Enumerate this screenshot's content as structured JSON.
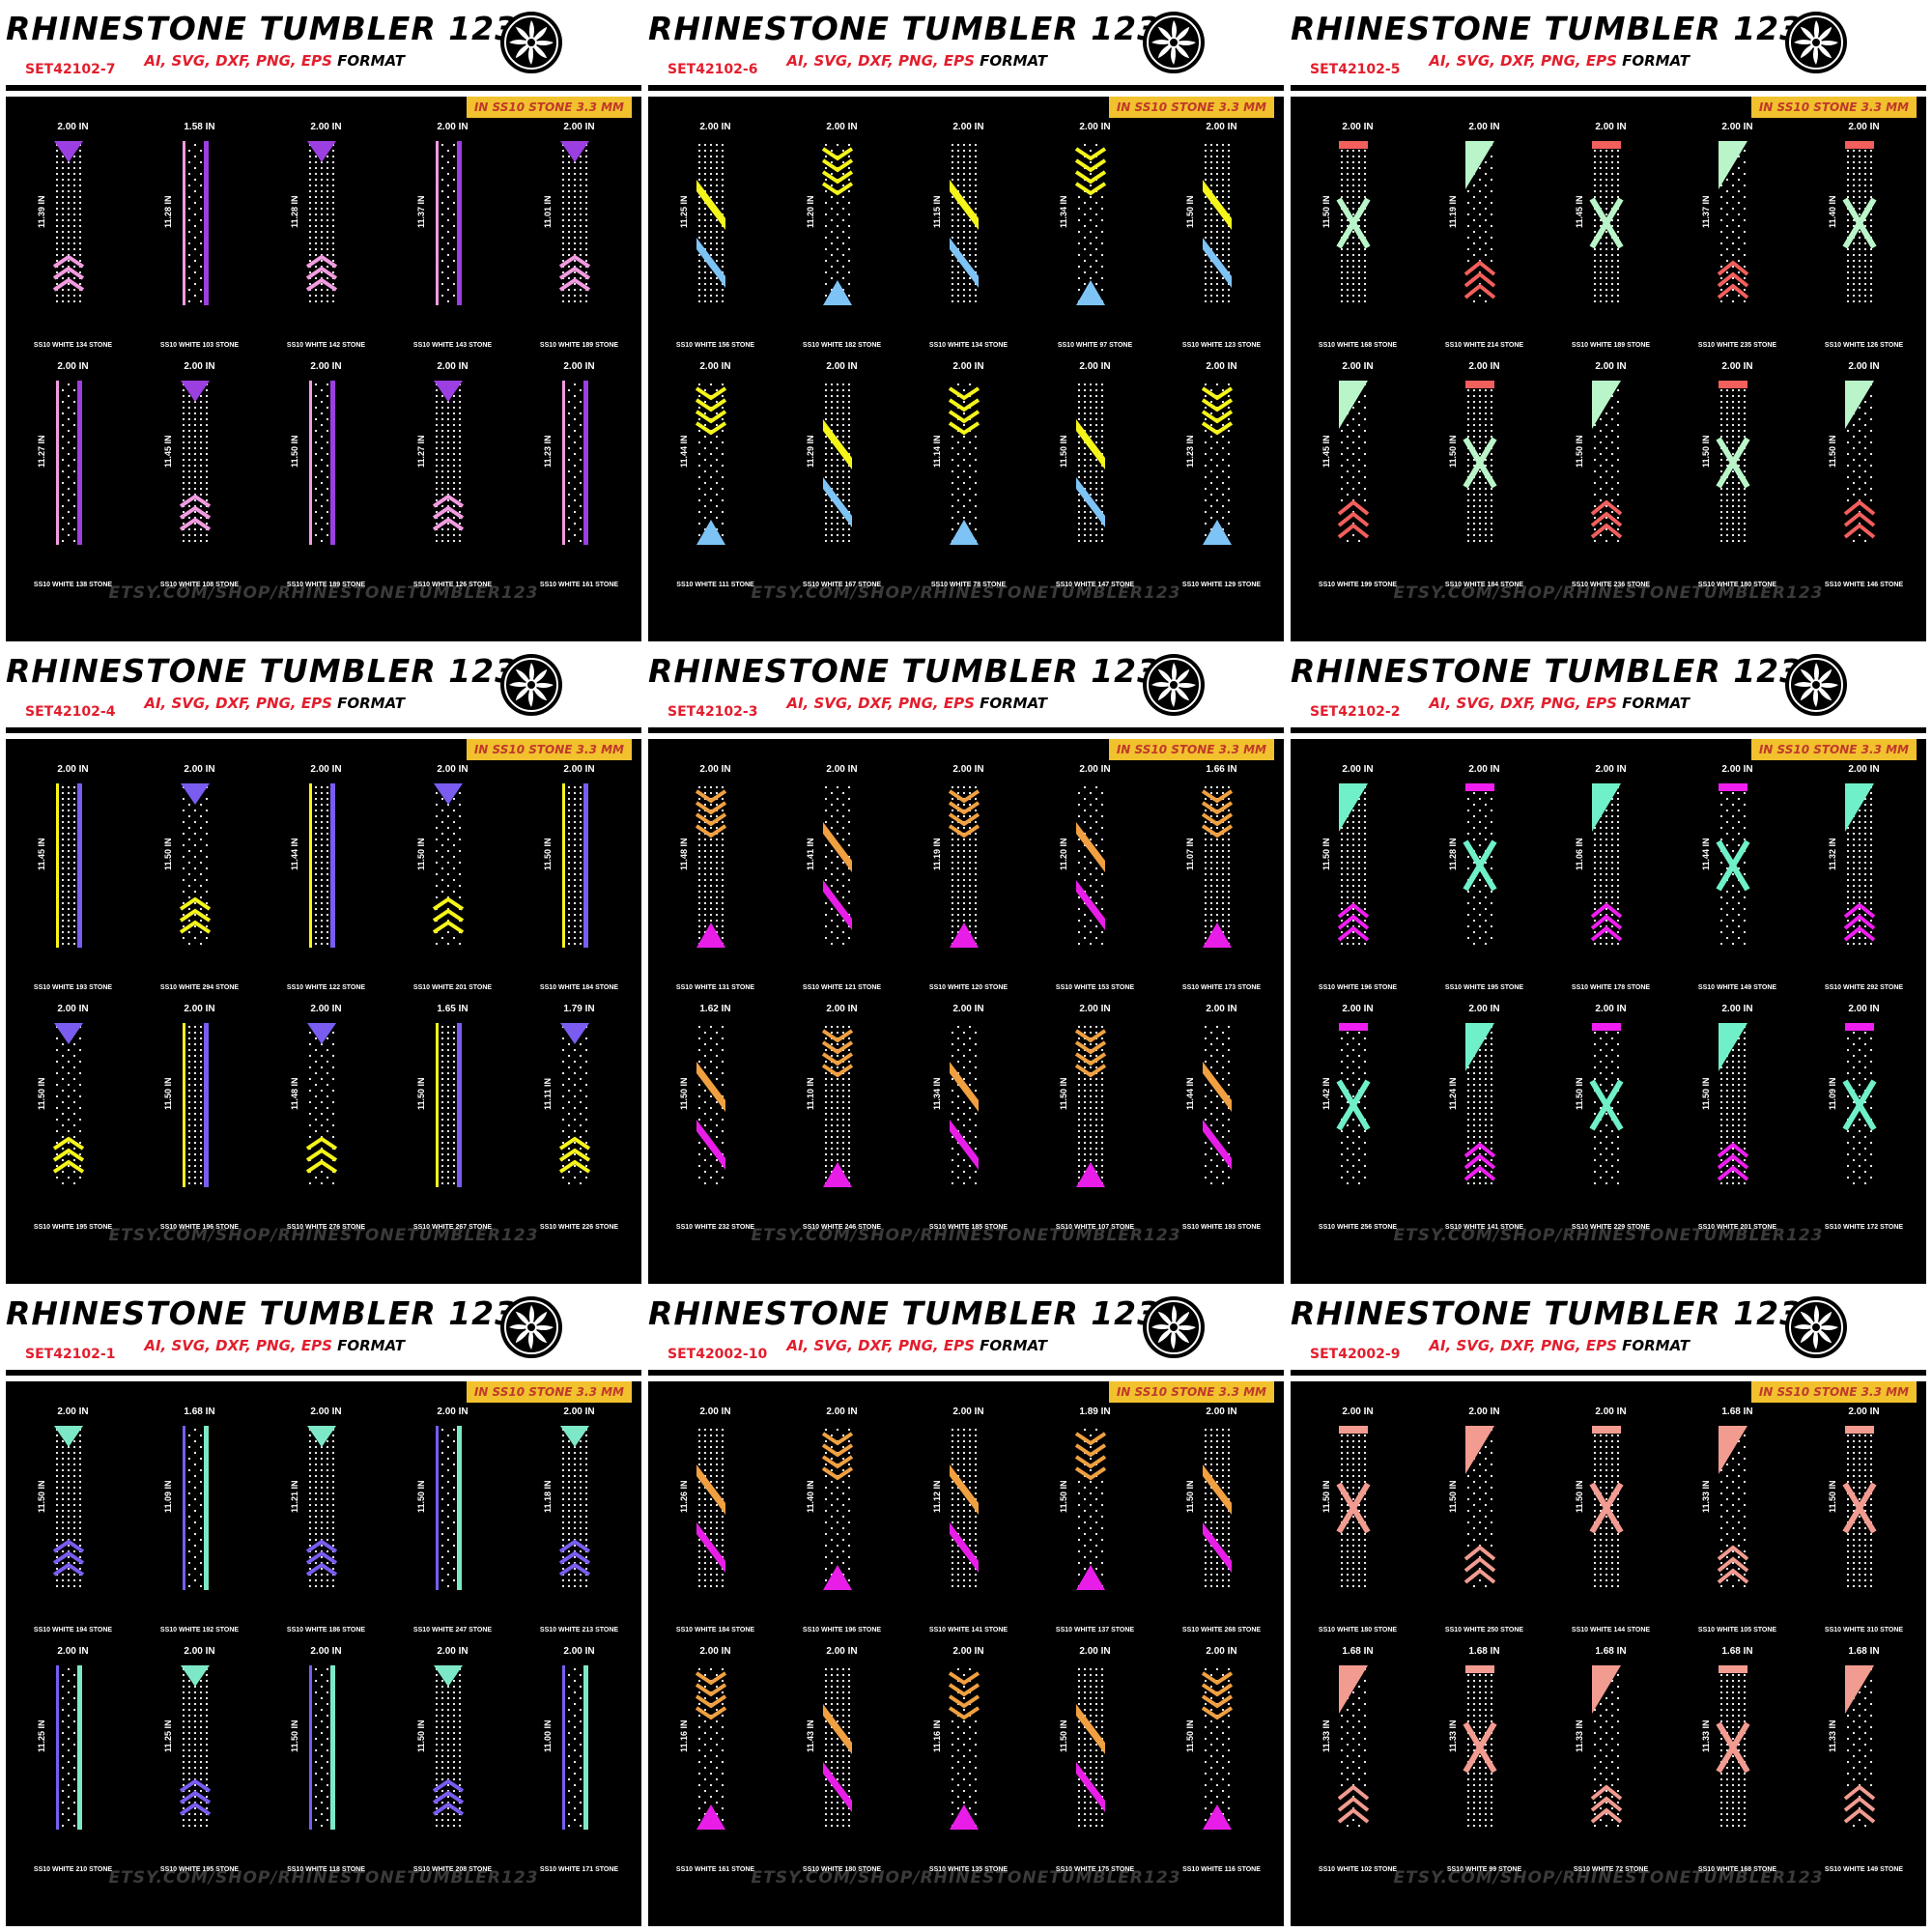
{
  "brand": "RHINESTONE TUMBLER 123",
  "format_colored": "AI, SVG, DXF, PNG, EPS",
  "format_suffix": "FORMAT",
  "badge": "IN SS10 STONE 3.3 MM",
  "footer": "ETSY.COM/SHOP/RHINESTONETUMBLER123",
  "logo_icon": "rosette-logo-icon",
  "colors": {
    "header_red": "#e21e2d",
    "badge_yellow": "#f2c12e",
    "panel_bg": "#000000"
  },
  "panels": [
    {
      "code": "SET42102-7",
      "accent": "#9b3fe0",
      "accent2": "#f29be0",
      "designs": [
        {
          "w": "2.00 IN",
          "h": "11.39 IN",
          "s": "SS10 WHITE 134 STONE"
        },
        {
          "w": "1.58 IN",
          "h": "11.28 IN",
          "s": "SS10 WHITE 103 STONE"
        },
        {
          "w": "2.00 IN",
          "h": "11.28 IN",
          "s": "SS10 WHITE 142 STONE"
        },
        {
          "w": "2.00 IN",
          "h": "11.37 IN",
          "s": "SS10 WHITE 143 STONE"
        },
        {
          "w": "2.00 IN",
          "h": "11.01 IN",
          "s": "SS10 WHITE 189 STONE"
        },
        {
          "w": "2.00 IN",
          "h": "11.27 IN",
          "s": "SS10 WHITE 138 STONE"
        },
        {
          "w": "2.00 IN",
          "h": "11.45 IN",
          "s": "SS10 WHITE 108 STONE"
        },
        {
          "w": "2.00 IN",
          "h": "11.50 IN",
          "s": "SS10 WHITE 189 STONE"
        },
        {
          "w": "2.00 IN",
          "h": "11.27 IN",
          "s": "SS10 WHITE 126 STONE"
        },
        {
          "w": "2.00 IN",
          "h": "11.23 IN",
          "s": "SS10 WHITE 161 STONE"
        }
      ]
    },
    {
      "code": "SET42102-6",
      "accent": "#f5f51a",
      "accent2": "#7ec3f5",
      "designs": [
        {
          "w": "2.00 IN",
          "h": "11.25 IN",
          "s": "SS10 WHITE 156 STONE"
        },
        {
          "w": "2.00 IN",
          "h": "11.20 IN",
          "s": "SS10 WHITE 182 STONE"
        },
        {
          "w": "2.00 IN",
          "h": "11.15 IN",
          "s": "SS10 WHITE 134 STONE"
        },
        {
          "w": "2.00 IN",
          "h": "11.34 IN",
          "s": "SS10 WHITE 97 STONE"
        },
        {
          "w": "2.00 IN",
          "h": "11.50 IN",
          "s": "SS10 WHITE 123 STONE"
        },
        {
          "w": "2.00 IN",
          "h": "11.44 IN",
          "s": "SS10 WHITE 111 STONE"
        },
        {
          "w": "2.00 IN",
          "h": "11.29 IN",
          "s": "SS10 WHITE 167 STONE"
        },
        {
          "w": "2.00 IN",
          "h": "11.14 IN",
          "s": "SS10 WHITE 78 STONE"
        },
        {
          "w": "2.00 IN",
          "h": "11.50 IN",
          "s": "SS10 WHITE 147 STONE"
        },
        {
          "w": "2.00 IN",
          "h": "11.23 IN",
          "s": "SS10 WHITE 129 STONE"
        }
      ]
    },
    {
      "code": "SET42102-5",
      "accent": "#b9f5c9",
      "accent2": "#f25f5c",
      "designs": [
        {
          "w": "2.00 IN",
          "h": "11.50 IN",
          "s": "SS10 WHITE 168 STONE"
        },
        {
          "w": "2.00 IN",
          "h": "11.19 IN",
          "s": "SS10 WHITE 214 STONE"
        },
        {
          "w": "2.00 IN",
          "h": "11.45 IN",
          "s": "SS10 WHITE 189 STONE"
        },
        {
          "w": "2.00 IN",
          "h": "11.37 IN",
          "s": "SS10 WHITE 235 STONE"
        },
        {
          "w": "2.00 IN",
          "h": "11.40 IN",
          "s": "SS10 WHITE 126 STONE"
        },
        {
          "w": "2.00 IN",
          "h": "11.45 IN",
          "s": "SS10 WHITE 199 STONE"
        },
        {
          "w": "2.00 IN",
          "h": "11.50 IN",
          "s": "SS10 WHITE 184 STONE"
        },
        {
          "w": "2.00 IN",
          "h": "11.50 IN",
          "s": "SS10 WHITE 236 STONE"
        },
        {
          "w": "2.00 IN",
          "h": "11.50 IN",
          "s": "SS10 WHITE 180 STONE"
        },
        {
          "w": "2.00 IN",
          "h": "11.50 IN",
          "s": "SS10 WHITE 146 STONE"
        }
      ]
    },
    {
      "code": "SET42102-4",
      "accent": "#7a5cf0",
      "accent2": "#f5f51a",
      "designs": [
        {
          "w": "2.00 IN",
          "h": "11.45 IN",
          "s": "SS10 WHITE 193 STONE"
        },
        {
          "w": "2.00 IN",
          "h": "11.50 IN",
          "s": "SS10 WHITE 294 STONE"
        },
        {
          "w": "2.00 IN",
          "h": "11.44 IN",
          "s": "SS10 WHITE 122 STONE"
        },
        {
          "w": "2.00 IN",
          "h": "11.50 IN",
          "s": "SS10 WHITE 201 STONE"
        },
        {
          "w": "2.00 IN",
          "h": "11.50 IN",
          "s": "SS10 WHITE 184 STONE"
        },
        {
          "w": "2.00 IN",
          "h": "11.50 IN",
          "s": "SS10 WHITE 195 STONE"
        },
        {
          "w": "2.00 IN",
          "h": "11.50 IN",
          "s": "SS10 WHITE 196 STONE"
        },
        {
          "w": "2.00 IN",
          "h": "11.48 IN",
          "s": "SS10 WHITE 276 STONE"
        },
        {
          "w": "1.65 IN",
          "h": "11.50 IN",
          "s": "SS10 WHITE 267 STONE"
        },
        {
          "w": "1.79 IN",
          "h": "11.11 IN",
          "s": "SS10 WHITE 226 STONE"
        }
      ]
    },
    {
      "code": "SET42102-3",
      "accent": "#f0a040",
      "accent2": "#e81ee8",
      "designs": [
        {
          "w": "2.00 IN",
          "h": "11.48 IN",
          "s": "SS10 WHITE 131 STONE"
        },
        {
          "w": "2.00 IN",
          "h": "11.41 IN",
          "s": "SS10 WHITE 121 STONE"
        },
        {
          "w": "2.00 IN",
          "h": "11.19 IN",
          "s": "SS10 WHITE 120 STONE"
        },
        {
          "w": "2.00 IN",
          "h": "11.20 IN",
          "s": "SS10 WHITE 153 STONE"
        },
        {
          "w": "1.66 IN",
          "h": "11.07 IN",
          "s": "SS10 WHITE 173 STONE"
        },
        {
          "w": "1.62 IN",
          "h": "11.50 IN",
          "s": "SS10 WHITE 232 STONE"
        },
        {
          "w": "2.00 IN",
          "h": "11.10 IN",
          "s": "SS10 WHITE 246 STONE"
        },
        {
          "w": "2.00 IN",
          "h": "11.34 IN",
          "s": "SS10 WHITE 185 STONE"
        },
        {
          "w": "2.00 IN",
          "h": "11.50 IN",
          "s": "SS10 WHITE 107 STONE"
        },
        {
          "w": "2.00 IN",
          "h": "11.44 IN",
          "s": "SS10 WHITE 193 STONE"
        }
      ]
    },
    {
      "code": "SET42102-2",
      "accent": "#6ff0c8",
      "accent2": "#f01ef0",
      "designs": [
        {
          "w": "2.00 IN",
          "h": "11.50 IN",
          "s": "SS10 WHITE 196 STONE"
        },
        {
          "w": "2.00 IN",
          "h": "11.28 IN",
          "s": "SS10 WHITE 195 STONE"
        },
        {
          "w": "2.00 IN",
          "h": "11.06 IN",
          "s": "SS10 WHITE 178 STONE"
        },
        {
          "w": "2.00 IN",
          "h": "11.44 IN",
          "s": "SS10 WHITE 149 STONE"
        },
        {
          "w": "2.00 IN",
          "h": "11.32 IN",
          "s": "SS10 WHITE 292 STONE"
        },
        {
          "w": "2.00 IN",
          "h": "11.42 IN",
          "s": "SS10 WHITE 256 STONE"
        },
        {
          "w": "2.00 IN",
          "h": "11.24 IN",
          "s": "SS10 WHITE 141 STONE"
        },
        {
          "w": "2.00 IN",
          "h": "11.50 IN",
          "s": "SS10 WHITE 229 STONE"
        },
        {
          "w": "2.00 IN",
          "h": "11.50 IN",
          "s": "SS10 WHITE 201 STONE"
        },
        {
          "w": "2.00 IN",
          "h": "11.09 IN",
          "s": "SS10 WHITE 172 STONE"
        }
      ]
    },
    {
      "code": "SET42102-1",
      "accent": "#7de8c8",
      "accent2": "#7a5cf0",
      "designs": [
        {
          "w": "2.00 IN",
          "h": "11.50 IN",
          "s": "SS10 WHITE 194 STONE"
        },
        {
          "w": "1.68 IN",
          "h": "11.09 IN",
          "s": "SS10 WHITE 192 STONE"
        },
        {
          "w": "2.00 IN",
          "h": "11.21 IN",
          "s": "SS10 WHITE 186 STONE"
        },
        {
          "w": "2.00 IN",
          "h": "11.50 IN",
          "s": "SS10 WHITE 247 STONE"
        },
        {
          "w": "2.00 IN",
          "h": "11.18 IN",
          "s": "SS10 WHITE 213 STONE"
        },
        {
          "w": "2.00 IN",
          "h": "11.25 IN",
          "s": "SS10 WHITE 210 STONE"
        },
        {
          "w": "2.00 IN",
          "h": "11.25 IN",
          "s": "SS10 WHITE 195 STONE"
        },
        {
          "w": "2.00 IN",
          "h": "11.50 IN",
          "s": "SS10 WHITE 118 STONE"
        },
        {
          "w": "2.00 IN",
          "h": "11.50 IN",
          "s": "SS10 WHITE 208 STONE"
        },
        {
          "w": "2.00 IN",
          "h": "11.00 IN",
          "s": "SS10 WHITE 171 STONE"
        }
      ]
    },
    {
      "code": "SET42002-10",
      "accent": "#f0a040",
      "accent2": "#e81ee8",
      "designs": [
        {
          "w": "2.00 IN",
          "h": "11.26 IN",
          "s": "SS10 WHITE 184 STONE"
        },
        {
          "w": "2.00 IN",
          "h": "11.40 IN",
          "s": "SS10 WHITE 196 STONE"
        },
        {
          "w": "2.00 IN",
          "h": "11.12 IN",
          "s": "SS10 WHITE 141 STONE"
        },
        {
          "w": "1.89 IN",
          "h": "11.50 IN",
          "s": "SS10 WHITE 137 STONE"
        },
        {
          "w": "2.00 IN",
          "h": "11.50 IN",
          "s": "SS10 WHITE 268 STONE"
        },
        {
          "w": "2.00 IN",
          "h": "11.16 IN",
          "s": "SS10 WHITE 161 STONE"
        },
        {
          "w": "2.00 IN",
          "h": "11.43 IN",
          "s": "SS10 WHITE 180 STONE"
        },
        {
          "w": "2.00 IN",
          "h": "11.16 IN",
          "s": "SS10 WHITE 135 STONE"
        },
        {
          "w": "2.00 IN",
          "h": "11.50 IN",
          "s": "SS10 WHITE 175 STONE"
        },
        {
          "w": "2.00 IN",
          "h": "11.50 IN",
          "s": "SS10 WHITE 116 STONE"
        }
      ]
    },
    {
      "code": "SET42002-9",
      "accent": "#f29b90",
      "accent2": "#f29b90",
      "designs": [
        {
          "w": "2.00 IN",
          "h": "11.50 IN",
          "s": "SS10 WHITE 180 STONE"
        },
        {
          "w": "2.00 IN",
          "h": "11.50 IN",
          "s": "SS10 WHITE 250 STONE"
        },
        {
          "w": "2.00 IN",
          "h": "11.50 IN",
          "s": "SS10 WHITE 144 STONE"
        },
        {
          "w": "1.68 IN",
          "h": "11.33 IN",
          "s": "SS10 WHITE 105 STONE"
        },
        {
          "w": "2.00 IN",
          "h": "11.50 IN",
          "s": "SS10 WHITE 310 STONE"
        },
        {
          "w": "1.68 IN",
          "h": "11.33 IN",
          "s": "SS10 WHITE 102 STONE"
        },
        {
          "w": "1.68 IN",
          "h": "11.33 IN",
          "s": "SS10 WHITE 99 STONE"
        },
        {
          "w": "1.68 IN",
          "h": "11.33 IN",
          "s": "SS10 WHITE 72 STONE"
        },
        {
          "w": "1.68 IN",
          "h": "11.33 IN",
          "s": "SS10 WHITE 168 STONE"
        },
        {
          "w": "1.68 IN",
          "h": "11.33 IN",
          "s": "SS10 WHITE 149 STONE"
        }
      ]
    }
  ]
}
